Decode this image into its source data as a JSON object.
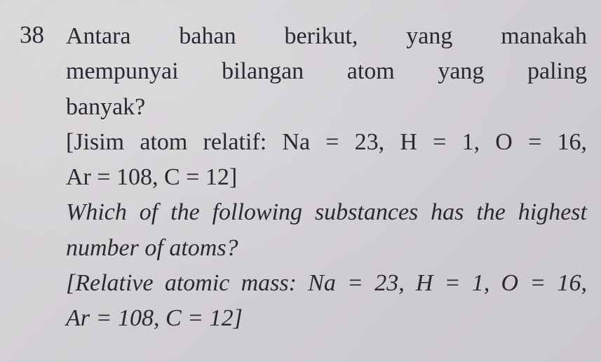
{
  "question": {
    "number": "38",
    "malay_lines": [
      "Antara bahan berikut, yang manakah",
      "mempunyai bilangan atom yang paling",
      "banyak?"
    ],
    "malay_data_lines": [
      "[Jisim atom relatif: Na = 23, H = 1, O = 16,",
      "Ar = 108, C = 12]"
    ],
    "english_lines": [
      "Which of the following substances has the highest",
      "number of atoms?"
    ],
    "english_data_lines": [
      "[Relative atomic mass: Na = 23, H = 1, O = 16,",
      "Ar = 108, C = 12]"
    ]
  },
  "style": {
    "background_color": "#d4d1d6",
    "text_color": "#2a2a2e",
    "font_size_pt": 26,
    "qnum_font_size_pt": 26,
    "line_height": 1.42,
    "italic_sections": [
      "english_lines",
      "english_data_lines"
    ]
  }
}
